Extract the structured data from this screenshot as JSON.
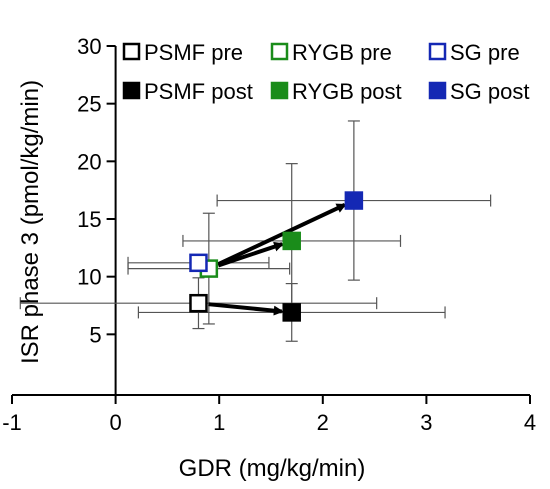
{
  "chart_data": {
    "type": "scatter",
    "xlabel": "GDR (mg/kg/min)",
    "ylabel": "ISR phase 3 (pmol/kg/min)",
    "xlim": [
      -1,
      4
    ],
    "ylim": [
      0,
      30
    ],
    "x_ticks": [
      -1,
      0,
      1,
      2,
      3,
      4
    ],
    "y_ticks": [
      5,
      10,
      15,
      20,
      25,
      30
    ],
    "grid": false,
    "legend_position": "top",
    "series": [
      {
        "name": "PSMF pre",
        "x": [
          0.8
        ],
        "y": [
          7.7
        ],
        "x_err": [
          1.72
        ],
        "y_err": [
          2.2
        ],
        "color": "#000000",
        "filled": false
      },
      {
        "name": "RYGB pre",
        "x": [
          0.9
        ],
        "y": [
          10.7
        ],
        "x_err": [
          0.78
        ],
        "y_err": [
          4.8
        ],
        "color": "#1a8c1a",
        "filled": false
      },
      {
        "name": "SG pre",
        "x": [
          0.8
        ],
        "y": [
          11.2
        ],
        "x_err": [
          0.68
        ],
        "y_err": [
          0
        ],
        "color": "#1428b4",
        "filled": false
      },
      {
        "name": "PSMF post",
        "x": [
          1.7
        ],
        "y": [
          6.9
        ],
        "x_err": [
          1.48
        ],
        "y_err": [
          2.5
        ],
        "color": "#000000",
        "filled": true
      },
      {
        "name": "RYGB post",
        "x": [
          1.7
        ],
        "y": [
          13.1
        ],
        "x_err": [
          1.05
        ],
        "y_err": [
          6.7
        ],
        "color": "#1a8c1a",
        "filled": true
      },
      {
        "name": "SG post",
        "x": [
          2.3
        ],
        "y": [
          16.6
        ],
        "x_err": [
          1.32
        ],
        "y_err": [
          6.9
        ],
        "color": "#1428b4",
        "filled": true
      }
    ],
    "arrows": [
      {
        "from": [
          0.8,
          7.7
        ],
        "to": [
          1.7,
          6.9
        ]
      },
      {
        "from": [
          0.9,
          10.7
        ],
        "to": [
          1.7,
          13.1
        ]
      },
      {
        "from": [
          0.9,
          10.7
        ],
        "to": [
          2.3,
          16.6
        ]
      }
    ]
  }
}
